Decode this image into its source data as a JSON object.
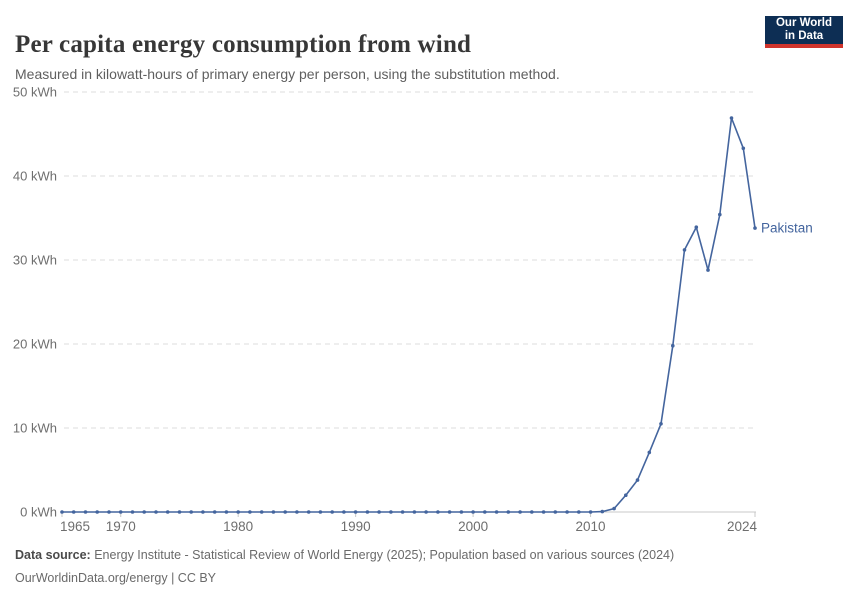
{
  "header": {
    "title": "Per capita energy consumption from wind",
    "subtitle": "Measured in kilowatt-hours of primary energy per person, using the substitution method.",
    "logo": {
      "line1": "Our World",
      "line2": "in Data"
    }
  },
  "colors": {
    "series_blue": "#44659e",
    "grid": "#dcdcdc",
    "axis": "#c8c8c8",
    "tick_label": "#6e6e6e",
    "logo_navy": "#0d2e54",
    "logo_red": "#d0342c"
  },
  "chart_data": {
    "type": "line",
    "title": "Per capita energy consumption from wind",
    "subtitle": "Measured in kilowatt-hours of primary energy per person, using the substitution method.",
    "xlabel": "",
    "ylabel": "kWh",
    "xlim": [
      1965,
      2024
    ],
    "ylim": [
      0,
      50
    ],
    "x_ticks": [
      1965,
      1970,
      1980,
      1990,
      2000,
      2010,
      2024
    ],
    "y_ticks": [
      0,
      10,
      20,
      30,
      40,
      50
    ],
    "y_tick_suffix": " kWh",
    "grid": "horizontal-dashed",
    "legend_position": "label-at-line-end",
    "x": [
      1965,
      1966,
      1967,
      1968,
      1969,
      1970,
      1971,
      1972,
      1973,
      1974,
      1975,
      1976,
      1977,
      1978,
      1979,
      1980,
      1981,
      1982,
      1983,
      1984,
      1985,
      1986,
      1987,
      1988,
      1989,
      1990,
      1991,
      1992,
      1993,
      1994,
      1995,
      1996,
      1997,
      1998,
      1999,
      2000,
      2001,
      2002,
      2003,
      2004,
      2005,
      2006,
      2007,
      2008,
      2009,
      2010,
      2011,
      2012,
      2013,
      2014,
      2015,
      2016,
      2017,
      2018,
      2019,
      2020,
      2021,
      2022,
      2023,
      2024
    ],
    "series": [
      {
        "name": "Pakistan",
        "color": "#44659e",
        "values": [
          0,
          0,
          0,
          0,
          0,
          0,
          0,
          0,
          0,
          0,
          0,
          0,
          0,
          0,
          0,
          0,
          0,
          0,
          0,
          0,
          0,
          0,
          0,
          0,
          0,
          0,
          0,
          0,
          0,
          0,
          0,
          0,
          0,
          0,
          0,
          0,
          0,
          0,
          0,
          0,
          0,
          0,
          0,
          0,
          0,
          0,
          0.05,
          0.4,
          2,
          3.8,
          7.1,
          10.5,
          19.8,
          31.2,
          33.9,
          28.8,
          35.4,
          46.9,
          43.3,
          33.8
        ]
      }
    ]
  },
  "footer": {
    "datasource_label": "Data source:",
    "datasource_text": "Energy Institute - Statistical Review of World Energy (2025); Population based on various sources (2024)",
    "license_line": "OurWorldinData.org/energy | CC BY"
  }
}
